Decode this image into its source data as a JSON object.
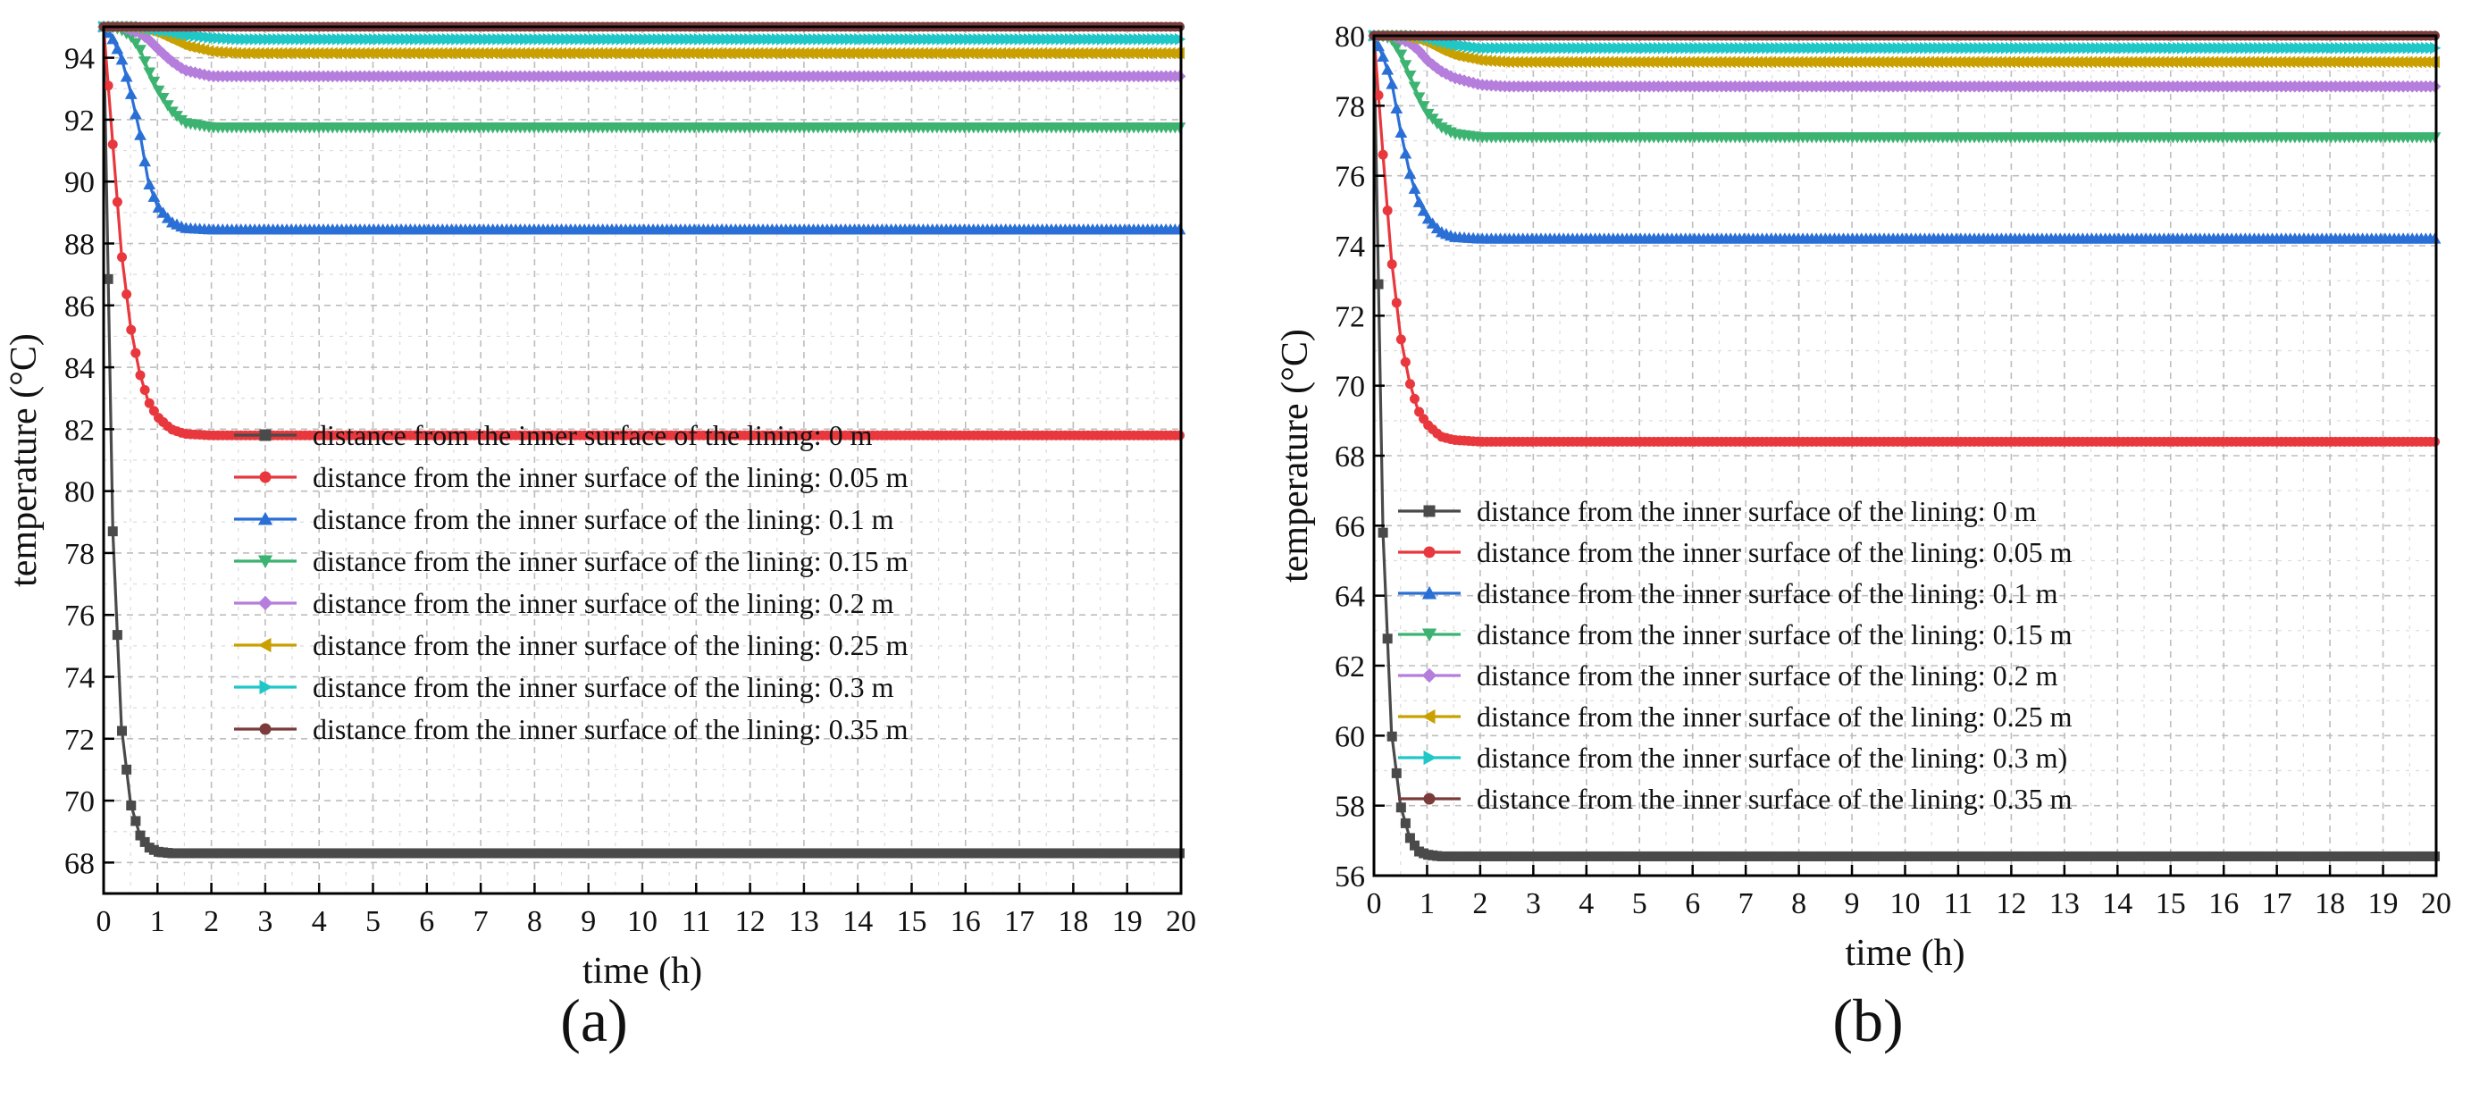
{
  "chart_data": [
    {
      "type": "line",
      "panel_label": "(a)",
      "xlabel": "time (h)",
      "ylabel": "temperature (°C)",
      "xlim": [
        0,
        20
      ],
      "ylim": [
        67,
        95
      ],
      "xticks": [
        0,
        1,
        2,
        3,
        4,
        5,
        6,
        7,
        8,
        9,
        10,
        11,
        12,
        13,
        14,
        15,
        16,
        17,
        18,
        19,
        20
      ],
      "yticks": [
        68,
        70,
        72,
        74,
        76,
        78,
        80,
        82,
        84,
        86,
        88,
        90,
        92,
        94
      ],
      "grid": true,
      "legend_position": "lower-center",
      "x": [
        0,
        0.17,
        0.33,
        0.5,
        0.67,
        0.83,
        1,
        1.25,
        1.5,
        2,
        2.5,
        3,
        4,
        5,
        6,
        7,
        8,
        9,
        10,
        11,
        12,
        13,
        14,
        15,
        16,
        17,
        18,
        19,
        20
      ],
      "series": [
        {
          "name": "distance from the inner surface of the lining: 0 m",
          "color": "#4a4a4a",
          "marker": "square",
          "values": [
            95,
            78.7,
            72.4,
            69.9,
            68.9,
            68.5,
            68.35,
            68.3,
            68.3,
            68.3,
            68.3,
            68.3,
            68.3,
            68.3,
            68.3,
            68.3,
            68.3,
            68.3,
            68.3,
            68.3,
            68.3,
            68.3,
            68.3,
            68.3,
            68.3,
            68.3,
            68.3,
            68.3,
            68.3
          ]
        },
        {
          "name": "distance from the inner surface of the lining: 0.05 m",
          "color": "#e8383d",
          "marker": "circle",
          "values": [
            95,
            91.2,
            87.7,
            85.3,
            83.8,
            82.9,
            82.4,
            82.0,
            81.85,
            81.8,
            81.8,
            81.8,
            81.8,
            81.8,
            81.8,
            81.8,
            81.8,
            81.8,
            81.8,
            81.8,
            81.8,
            81.8,
            81.8,
            81.8,
            81.8,
            81.8,
            81.8,
            81.8,
            81.8
          ]
        },
        {
          "name": "distance from the inner surface of the lining: 0.1 m",
          "color": "#2a6fd6",
          "marker": "triangle-up",
          "values": [
            95,
            94.6,
            94.0,
            92.9,
            91.6,
            90.0,
            89.2,
            88.7,
            88.5,
            88.45,
            88.45,
            88.45,
            88.45,
            88.45,
            88.45,
            88.45,
            88.45,
            88.45,
            88.45,
            88.45,
            88.45,
            88.45,
            88.45,
            88.45,
            88.45,
            88.45,
            88.45,
            88.45,
            88.45
          ]
        },
        {
          "name": "distance from the inner surface of the lining: 0.15 m",
          "color": "#3cb371",
          "marker": "triangle-down",
          "values": [
            95,
            95,
            94.9,
            94.7,
            94.3,
            93.6,
            93.0,
            92.3,
            91.9,
            91.75,
            91.75,
            91.75,
            91.75,
            91.75,
            91.75,
            91.75,
            91.75,
            91.75,
            91.75,
            91.75,
            91.75,
            91.75,
            91.75,
            91.75,
            91.75,
            91.75,
            91.75,
            91.75,
            91.75
          ]
        },
        {
          "name": "distance from the inner surface of the lining: 0.2 m",
          "color": "#b57edc",
          "marker": "diamond",
          "values": [
            95,
            95,
            95,
            94.9,
            94.8,
            94.6,
            94.3,
            93.9,
            93.6,
            93.4,
            93.4,
            93.4,
            93.4,
            93.4,
            93.4,
            93.4,
            93.4,
            93.4,
            93.4,
            93.4,
            93.4,
            93.4,
            93.4,
            93.4,
            93.4,
            93.4,
            93.4,
            93.4,
            93.4
          ]
        },
        {
          "name": "distance from the inner surface of the lining: 0.25 m",
          "color": "#c9a000",
          "marker": "triangle-left",
          "values": [
            95,
            95,
            95,
            95,
            94.95,
            94.9,
            94.8,
            94.6,
            94.4,
            94.2,
            94.15,
            94.15,
            94.15,
            94.15,
            94.15,
            94.15,
            94.15,
            94.15,
            94.15,
            94.15,
            94.15,
            94.15,
            94.15,
            94.15,
            94.15,
            94.15,
            94.15,
            94.15,
            94.15
          ]
        },
        {
          "name": "distance from the inner surface of the lining: 0.3 m",
          "color": "#1fc7c7",
          "marker": "triangle-right",
          "values": [
            95,
            95,
            95,
            95,
            95,
            94.95,
            94.9,
            94.85,
            94.75,
            94.65,
            94.6,
            94.6,
            94.6,
            94.6,
            94.6,
            94.6,
            94.6,
            94.6,
            94.6,
            94.6,
            94.6,
            94.6,
            94.6,
            94.6,
            94.6,
            94.6,
            94.6,
            94.6,
            94.6
          ]
        },
        {
          "name": "distance from the inner surface of the lining: 0.35 m",
          "color": "#7b3b3b",
          "marker": "circle",
          "values": [
            95,
            95,
            95,
            95,
            95,
            95,
            95,
            95,
            95,
            95,
            95,
            95,
            95,
            95,
            95,
            95,
            95,
            95,
            95,
            95,
            95,
            95,
            95,
            95,
            95,
            95,
            95,
            95,
            95
          ]
        }
      ]
    },
    {
      "type": "line",
      "panel_label": "(b)",
      "xlabel": "time (h)",
      "ylabel": "temperature (°C)",
      "xlim": [
        0,
        20
      ],
      "ylim": [
        56,
        80
      ],
      "xticks": [
        0,
        1,
        2,
        3,
        4,
        5,
        6,
        7,
        8,
        9,
        10,
        11,
        12,
        13,
        14,
        15,
        16,
        17,
        18,
        19,
        20
      ],
      "yticks": [
        56,
        58,
        60,
        62,
        64,
        66,
        68,
        70,
        72,
        74,
        76,
        78,
        80
      ],
      "grid": true,
      "legend_position": "lower-center",
      "x": [
        0,
        0.17,
        0.33,
        0.5,
        0.67,
        0.83,
        1,
        1.25,
        1.5,
        2,
        2.5,
        3,
        4,
        5,
        6,
        7,
        8,
        9,
        10,
        11,
        12,
        13,
        14,
        15,
        16,
        17,
        18,
        19,
        20
      ],
      "series": [
        {
          "name": "distance from the inner surface of the lining: 0 m",
          "color": "#4a4a4a",
          "marker": "square",
          "values": [
            80,
            65.8,
            60.1,
            58.0,
            57.1,
            56.7,
            56.6,
            56.55,
            56.55,
            56.55,
            56.55,
            56.55,
            56.55,
            56.55,
            56.55,
            56.55,
            56.55,
            56.55,
            56.55,
            56.55,
            56.55,
            56.55,
            56.55,
            56.55,
            56.55,
            56.55,
            56.55,
            56.55,
            56.55
          ]
        },
        {
          "name": "distance from the inner surface of the lining: 0.05 m",
          "color": "#e8383d",
          "marker": "circle",
          "values": [
            80,
            76.6,
            73.6,
            71.4,
            70.1,
            69.3,
            68.9,
            68.55,
            68.45,
            68.4,
            68.4,
            68.4,
            68.4,
            68.4,
            68.4,
            68.4,
            68.4,
            68.4,
            68.4,
            68.4,
            68.4,
            68.4,
            68.4,
            68.4,
            68.4,
            68.4,
            68.4,
            68.4,
            68.4
          ]
        },
        {
          "name": "distance from the inner surface of the lining: 0.1 m",
          "color": "#2a6fd6",
          "marker": "triangle-up",
          "values": [
            80,
            79.4,
            78.7,
            77.3,
            76.1,
            75.3,
            74.8,
            74.4,
            74.25,
            74.2,
            74.2,
            74.2,
            74.2,
            74.2,
            74.2,
            74.2,
            74.2,
            74.2,
            74.2,
            74.2,
            74.2,
            74.2,
            74.2,
            74.2,
            74.2,
            74.2,
            74.2,
            74.2,
            74.2
          ]
        },
        {
          "name": "distance from the inner surface of the lining: 0.15 m",
          "color": "#3cb371",
          "marker": "triangle-down",
          "values": [
            80,
            80,
            79.9,
            79.5,
            78.9,
            78.3,
            77.8,
            77.4,
            77.2,
            77.1,
            77.1,
            77.1,
            77.1,
            77.1,
            77.1,
            77.1,
            77.1,
            77.1,
            77.1,
            77.1,
            77.1,
            77.1,
            77.1,
            77.1,
            77.1,
            77.1,
            77.1,
            77.1,
            77.1
          ]
        },
        {
          "name": "distance from the inner surface of the lining: 0.2 m",
          "color": "#b57edc",
          "marker": "diamond",
          "values": [
            80,
            80,
            80,
            79.9,
            79.8,
            79.6,
            79.3,
            79.0,
            78.8,
            78.6,
            78.55,
            78.55,
            78.55,
            78.55,
            78.55,
            78.55,
            78.55,
            78.55,
            78.55,
            78.55,
            78.55,
            78.55,
            78.55,
            78.55,
            78.55,
            78.55,
            78.55,
            78.55,
            78.55
          ]
        },
        {
          "name": "distance from the inner surface of the lining: 0.25 m",
          "color": "#c9a000",
          "marker": "triangle-left",
          "values": [
            80,
            80,
            80,
            80,
            79.95,
            79.9,
            79.8,
            79.6,
            79.45,
            79.3,
            79.25,
            79.25,
            79.25,
            79.25,
            79.25,
            79.25,
            79.25,
            79.25,
            79.25,
            79.25,
            79.25,
            79.25,
            79.25,
            79.25,
            79.25,
            79.25,
            79.25,
            79.25,
            79.25
          ]
        },
        {
          "name": "distance from the inner surface of the lining: 0.3 m)",
          "color": "#1fc7c7",
          "marker": "triangle-right",
          "values": [
            80,
            80,
            80,
            80,
            80,
            80,
            79.95,
            79.85,
            79.75,
            79.65,
            79.65,
            79.65,
            79.65,
            79.65,
            79.65,
            79.65,
            79.65,
            79.65,
            79.65,
            79.65,
            79.65,
            79.65,
            79.65,
            79.65,
            79.65,
            79.65,
            79.65,
            79.65,
            79.65
          ]
        },
        {
          "name": "distance from the inner surface of the lining: 0.35 m",
          "color": "#7b3b3b",
          "marker": "circle",
          "values": [
            80,
            80,
            80,
            80,
            80,
            80,
            80,
            80,
            80,
            80,
            80,
            80,
            80,
            80,
            80,
            80,
            80,
            80,
            80,
            80,
            80,
            80,
            80,
            80,
            80,
            80,
            80,
            80,
            80
          ]
        }
      ]
    }
  ]
}
